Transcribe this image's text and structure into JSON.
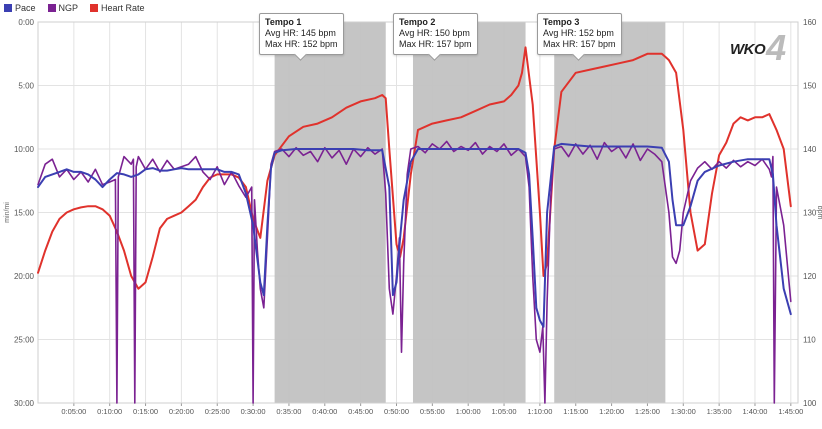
{
  "legend": {
    "pace_label": "Pace",
    "ngp_label": "NGP",
    "hr_label": "Heart Rate"
  },
  "watermark": {
    "text": "WKO",
    "number": "4"
  },
  "colors": {
    "pace": "#3b3fb2",
    "ngp": "#7b2292",
    "heart_rate": "#e0322c",
    "interval_fill": "#c2c2c2",
    "grid": "#e3e3e3"
  },
  "callouts": [
    {
      "title": "Tempo 1",
      "avg": "Avg HR: 145 bpm",
      "max": "Max HR: 152 bpm"
    },
    {
      "title": "Tempo 2",
      "avg": "Avg HR: 150 bpm",
      "max": "Max HR: 157 bpm"
    },
    {
      "title": "Tempo 3",
      "avg": "Avg HR: 152 bpm",
      "max": "Max HR: 157 bpm"
    }
  ],
  "chart_data": {
    "type": "line",
    "x_unit": "elapsed time (h:mm:ss)",
    "x_range_min": [
      0,
      106
    ],
    "x_ticks": [
      "0:05:00",
      "0:10:00",
      "0:15:00",
      "0:20:00",
      "0:25:00",
      "0:30:00",
      "0:35:00",
      "0:40:00",
      "0:45:00",
      "0:50:00",
      "0:55:00",
      "1:00:00",
      "1:05:00",
      "1:10:00",
      "1:15:00",
      "1:20:00",
      "1:25:00",
      "1:30:00",
      "1:35:00",
      "1:40:00",
      "1:45:00"
    ],
    "y_left": {
      "label": "min/mi",
      "ticks": [
        "0:00",
        "5:00",
        "10:00",
        "15:00",
        "20:00",
        "25:00",
        "30:00"
      ],
      "range_min": [
        0,
        30
      ],
      "inverted": true
    },
    "y_right": {
      "label": "bpm",
      "ticks": [
        "160",
        "150",
        "140",
        "130",
        "120",
        "110",
        "100"
      ],
      "range": [
        100,
        160
      ]
    },
    "grid": true,
    "legend_position": "top-left",
    "intervals": [
      {
        "name": "Tempo 1",
        "start_min": 33.0,
        "end_min": 48.5
      },
      {
        "name": "Tempo 2",
        "start_min": 52.3,
        "end_min": 68.0
      },
      {
        "name": "Tempo 3",
        "start_min": 72.0,
        "end_min": 87.5
      }
    ],
    "series": [
      {
        "name": "Pace",
        "axis": "left",
        "unit": "min/mi",
        "x": [
          0.0,
          1,
          2,
          3,
          4,
          5,
          6,
          7,
          8,
          9,
          10,
          11,
          12,
          13,
          14,
          15,
          16,
          17,
          18,
          19,
          20,
          21,
          22,
          23,
          24,
          25,
          26,
          27,
          28,
          29,
          30,
          31,
          31.5,
          32,
          32.5,
          33,
          34,
          36,
          38,
          40,
          42,
          44,
          46,
          48,
          49,
          49.5,
          50,
          50.5,
          51,
          52,
          53,
          55,
          57,
          59,
          61,
          63,
          65,
          67,
          68,
          68.5,
          69,
          69.5,
          70,
          70.5,
          71,
          72,
          73,
          75,
          77,
          79,
          81,
          83,
          85,
          87,
          88,
          88.5,
          89,
          90,
          91,
          92,
          93,
          95,
          97,
          99,
          101,
          102,
          102.5,
          103,
          104,
          105
        ],
        "y": [
          13.0,
          12.2,
          12.0,
          11.8,
          11.6,
          11.8,
          11.8,
          12.0,
          12.4,
          13.0,
          12.4,
          11.9,
          12.0,
          12.2,
          12.0,
          11.6,
          11.5,
          11.7,
          11.7,
          11.6,
          11.5,
          11.6,
          11.6,
          11.6,
          11.6,
          11.6,
          11.8,
          11.8,
          12.0,
          13.5,
          16.0,
          20.5,
          21.5,
          16.0,
          11.5,
          10.3,
          10.1,
          10.0,
          10.0,
          10.0,
          10.0,
          10.0,
          10.1,
          10.1,
          13.0,
          21.5,
          20.5,
          17.0,
          14.0,
          11.0,
          10.0,
          10.0,
          10.0,
          10.0,
          10.0,
          10.0,
          10.0,
          10.0,
          10.3,
          12.0,
          17.0,
          22.5,
          23.5,
          24.0,
          15.0,
          9.8,
          9.6,
          9.7,
          9.8,
          9.8,
          9.8,
          9.8,
          9.8,
          9.9,
          11.0,
          14.0,
          16.0,
          16.0,
          14.5,
          12.5,
          11.8,
          11.3,
          11.0,
          10.8,
          10.8,
          10.8,
          12.0,
          16.0,
          21.0,
          23.0
        ]
      },
      {
        "name": "NGP",
        "axis": "left",
        "unit": "min/mi",
        "x": [
          0.0,
          1,
          2,
          3,
          4,
          5,
          6,
          7,
          8,
          9,
          10,
          10.8,
          11.0,
          11.2,
          11.5,
          12,
          13,
          13.3,
          13.5,
          13.7,
          14,
          15,
          16,
          17,
          18,
          19,
          20,
          21,
          22,
          23,
          24,
          25,
          26,
          27,
          28,
          29,
          29.8,
          30.0,
          30.2,
          30.6,
          31,
          31.5,
          32,
          32.5,
          33,
          34,
          35,
          36,
          37,
          38,
          39,
          40,
          41,
          42,
          43,
          44,
          45,
          46,
          47,
          48,
          48.5,
          49,
          49.5,
          50,
          50.4,
          50.7,
          51,
          51.5,
          52,
          53,
          54,
          55,
          56,
          57,
          58,
          59,
          60,
          61,
          62,
          63,
          64,
          65,
          66,
          67,
          68,
          68.5,
          69,
          69.5,
          70,
          70.4,
          70.7,
          71,
          71.5,
          72,
          73,
          74,
          75,
          76,
          77,
          78,
          79,
          80,
          81,
          82,
          83,
          84,
          85,
          86,
          87,
          88,
          88.5,
          89,
          89.5,
          90,
          91,
          92,
          93,
          94,
          95,
          96,
          97,
          98,
          99,
          100,
          101,
          102,
          102.3,
          102.5,
          102.7,
          103,
          104,
          105
        ],
        "y": [
          12.8,
          11.2,
          10.8,
          12.2,
          11.6,
          12.4,
          11.8,
          12.6,
          11.6,
          12.8,
          12.6,
          12.4,
          30,
          12.2,
          11.6,
          10.6,
          11.2,
          10.8,
          30,
          11.4,
          10.6,
          11.6,
          10.8,
          11.8,
          10.9,
          11.6,
          11.4,
          11.2,
          10.6,
          11.8,
          12.4,
          11.4,
          12.8,
          11.8,
          12.9,
          13.8,
          13.0,
          30,
          14.0,
          18.0,
          21.0,
          22.5,
          17.0,
          11.2,
          10.2,
          10.0,
          10.6,
          9.9,
          10.5,
          10.2,
          11.0,
          9.9,
          10.7,
          10.1,
          11.2,
          10.0,
          10.6,
          9.9,
          10.4,
          10.0,
          13.5,
          21.0,
          23.0,
          20.0,
          17.0,
          26.0,
          19.0,
          12.0,
          10.0,
          9.8,
          10.3,
          9.6,
          10.0,
          9.4,
          10.2,
          9.8,
          10.1,
          9.5,
          10.4,
          9.8,
          10.2,
          9.6,
          10.5,
          10.0,
          10.6,
          13.0,
          20.0,
          25.0,
          26.0,
          24.0,
          30.0,
          22.0,
          14.0,
          10.0,
          9.8,
          10.6,
          9.6,
          10.4,
          9.7,
          10.8,
          9.5,
          10.2,
          9.8,
          10.7,
          9.6,
          10.9,
          10.0,
          10.4,
          11.0,
          15.0,
          18.5,
          19.0,
          18.0,
          15.0,
          12.5,
          11.5,
          11.0,
          11.6,
          11.0,
          11.5,
          10.9,
          11.4,
          11.0,
          11.3,
          10.8,
          11.6,
          12.2,
          10.6,
          30,
          13.0,
          16.0,
          22.0
        ]
      },
      {
        "name": "Heart Rate",
        "axis": "right",
        "unit": "bpm",
        "x": [
          0.0,
          1,
          2,
          3,
          4,
          5,
          6,
          7,
          8,
          9,
          10,
          11,
          12,
          13,
          14,
          15,
          16,
          17,
          18,
          19,
          20,
          21,
          22,
          23,
          24,
          25,
          26,
          27,
          28,
          29,
          30,
          31,
          32,
          33,
          35,
          37,
          39,
          41,
          43,
          45,
          47,
          48,
          48.5,
          49,
          50,
          50.5,
          51,
          52,
          53,
          55,
          57,
          59,
          61,
          63,
          65,
          66,
          67,
          67.5,
          68,
          69,
          70,
          70.5,
          71,
          72,
          73,
          75,
          77,
          79,
          81,
          83,
          85,
          87,
          87.5,
          88,
          89,
          90,
          91,
          92,
          93,
          94,
          95,
          96,
          97,
          98,
          99,
          100,
          101,
          102,
          103,
          104,
          105
        ],
        "y": [
          120.5,
          124,
          127,
          129,
          130,
          130.5,
          130.8,
          131,
          131,
          130.5,
          129.5,
          127,
          124,
          120,
          118,
          119,
          123,
          127.5,
          129,
          129.5,
          130,
          131,
          132,
          134,
          135.5,
          136,
          136,
          136,
          135.5,
          134,
          129,
          126,
          135,
          139,
          142,
          143.5,
          144,
          145,
          146.5,
          147.5,
          148,
          148.5,
          148,
          140,
          125,
          123,
          126,
          136,
          143,
          144,
          144.5,
          145,
          146,
          147,
          147.5,
          148.5,
          150,
          152,
          156,
          147,
          130,
          120,
          122,
          140,
          149,
          152,
          152.5,
          153,
          153.5,
          154,
          155,
          155,
          154.5,
          154,
          152,
          143,
          130,
          124,
          125,
          133,
          139,
          141,
          144,
          145,
          144.5,
          145,
          145,
          145.5,
          143,
          140,
          131
        ]
      }
    ]
  }
}
